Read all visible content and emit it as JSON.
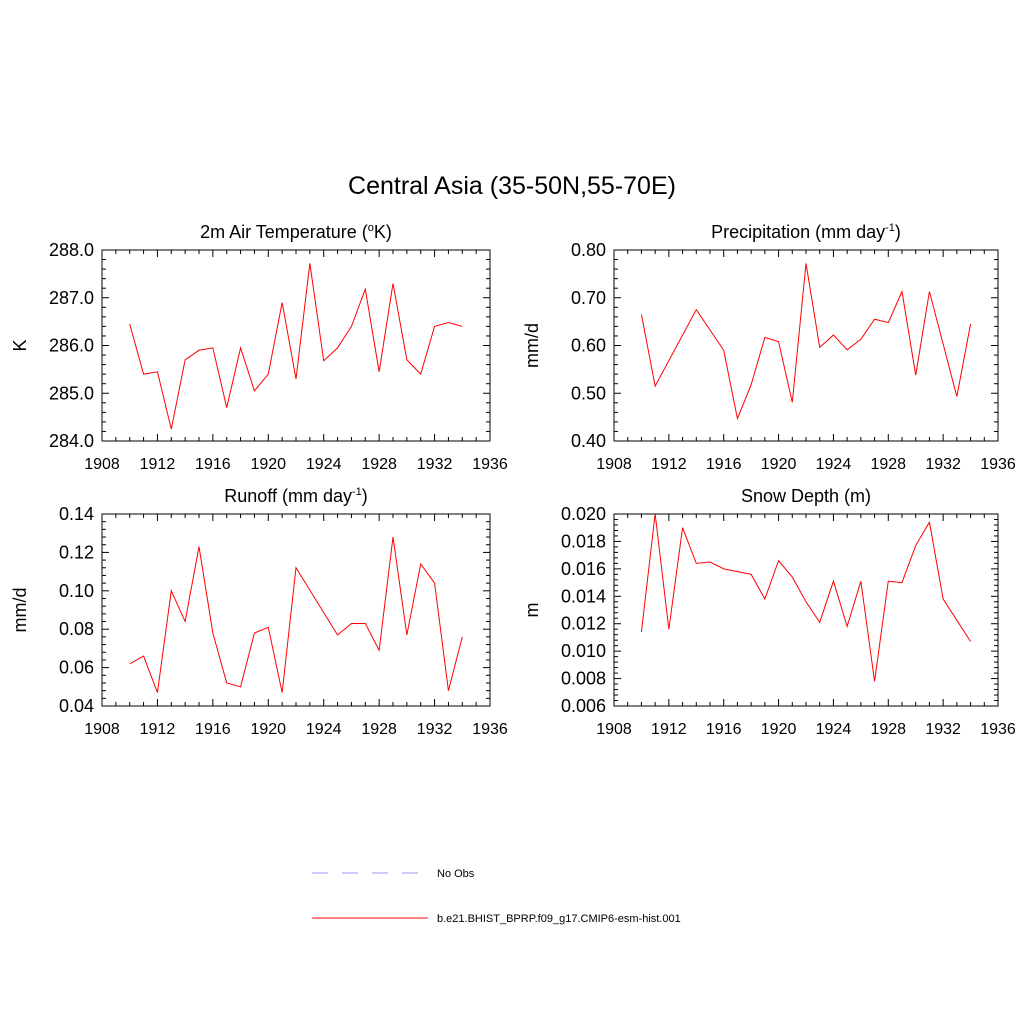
{
  "figure": {
    "title": "Central Asia (35-50N,55-70E)"
  },
  "legend": {
    "placement": "bottom-center",
    "entries": [
      {
        "label": "No Obs",
        "style": "dashed",
        "color": "#9999ff"
      },
      {
        "label": "b.e21.BHIST_BPRP.f09_g17.CMIP6-esm-hist.001",
        "style": "solid",
        "color": "#ff0000"
      }
    ]
  },
  "chart_data": [
    {
      "type": "line",
      "title": "2m Air Temperature (",
      "title_parts": {
        "pre": "2m Air Temperature (",
        "sup": "o",
        "post": "K)"
      },
      "ylabel": "K",
      "xlim": [
        1908,
        1936
      ],
      "ylim": [
        284.0,
        288.0
      ],
      "x_ticks": [
        "1908",
        "1912",
        "1916",
        "1920",
        "1924",
        "1928",
        "1932",
        "1936"
      ],
      "y_ticks": [
        "284.0",
        "285.0",
        "286.0",
        "287.0",
        "288.0"
      ],
      "y_tick_values": [
        284.0,
        285.0,
        286.0,
        287.0,
        288.0
      ],
      "color": "#ff0000",
      "x": [
        1910,
        1911,
        1912,
        1913,
        1914,
        1915,
        1916,
        1917,
        1918,
        1919,
        1920,
        1921,
        1922,
        1923,
        1924,
        1925,
        1926,
        1927,
        1928,
        1929,
        1930,
        1931,
        1932,
        1933,
        1934
      ],
      "values": [
        286.45,
        285.4,
        285.45,
        284.25,
        285.7,
        285.9,
        285.95,
        284.7,
        285.95,
        285.05,
        285.4,
        286.9,
        285.3,
        287.72,
        285.68,
        285.95,
        286.4,
        287.18,
        285.45,
        287.3,
        285.7,
        285.4,
        286.4,
        286.48,
        286.4
      ]
    },
    {
      "type": "line",
      "title": "Precipitation (mm day",
      "title_parts": {
        "pre": "Precipitation (mm day",
        "sup": "-1",
        "post": ")"
      },
      "ylabel": "mm/d",
      "xlim": [
        1908,
        1936
      ],
      "ylim": [
        0.4,
        0.8
      ],
      "x_ticks": [
        "1908",
        "1912",
        "1916",
        "1920",
        "1924",
        "1928",
        "1932",
        "1936"
      ],
      "y_ticks": [
        "0.40",
        "0.50",
        "0.60",
        "0.70",
        "0.80"
      ],
      "y_tick_values": [
        0.4,
        0.5,
        0.6,
        0.7,
        0.8
      ],
      "color": "#ff0000",
      "x": [
        1910,
        1911,
        1914,
        1916,
        1917,
        1918,
        1919,
        1920,
        1921,
        1922,
        1923,
        1924,
        1925,
        1926,
        1927,
        1928,
        1929,
        1930,
        1931,
        1933,
        1934
      ],
      "values": [
        0.665,
        0.515,
        0.675,
        0.59,
        0.447,
        0.518,
        0.617,
        0.608,
        0.481,
        0.772,
        0.596,
        0.622,
        0.591,
        0.613,
        0.655,
        0.648,
        0.713,
        0.538,
        0.713,
        0.493,
        0.645
      ]
    },
    {
      "type": "line",
      "title": "Runoff (mm day",
      "title_parts": {
        "pre": "Runoff (mm day",
        "sup": "-1",
        "post": ")"
      },
      "ylabel": "mm/d",
      "xlim": [
        1908,
        1936
      ],
      "ylim": [
        0.04,
        0.14
      ],
      "x_ticks": [
        "1908",
        "1912",
        "1916",
        "1920",
        "1924",
        "1928",
        "1932",
        "1936"
      ],
      "y_ticks": [
        "0.04",
        "0.06",
        "0.08",
        "0.10",
        "0.12",
        "0.14"
      ],
      "y_tick_values": [
        0.04,
        0.06,
        0.08,
        0.1,
        0.12,
        0.14
      ],
      "color": "#ff0000",
      "x": [
        1910,
        1911,
        1912,
        1913,
        1914,
        1915,
        1916,
        1917,
        1918,
        1919,
        1920,
        1921,
        1922,
        1925,
        1926,
        1927,
        1928,
        1929,
        1930,
        1931,
        1932,
        1933,
        1934
      ],
      "values": [
        0.062,
        0.066,
        0.047,
        0.1,
        0.084,
        0.123,
        0.078,
        0.052,
        0.05,
        0.078,
        0.081,
        0.047,
        0.112,
        0.077,
        0.083,
        0.083,
        0.069,
        0.128,
        0.077,
        0.114,
        0.104,
        0.048,
        0.076
      ]
    },
    {
      "type": "line",
      "title": "Snow Depth (m)",
      "title_parts": {
        "pre": "Snow Depth (m)",
        "sup": "",
        "post": ""
      },
      "ylabel": "m",
      "xlim": [
        1908,
        1936
      ],
      "ylim": [
        0.006,
        0.02
      ],
      "x_ticks": [
        "1908",
        "1912",
        "1916",
        "1920",
        "1924",
        "1928",
        "1932",
        "1936"
      ],
      "y_ticks": [
        "0.006",
        "0.008",
        "0.010",
        "0.012",
        "0.014",
        "0.016",
        "0.018",
        "0.020"
      ],
      "y_tick_values": [
        0.006,
        0.008,
        0.01,
        0.012,
        0.014,
        0.016,
        0.018,
        0.02
      ],
      "color": "#ff0000",
      "x": [
        1910,
        1911,
        1912,
        1913,
        1914,
        1915,
        1916,
        1918,
        1919,
        1920,
        1921,
        1922,
        1923,
        1924,
        1925,
        1926,
        1927,
        1928,
        1929,
        1930,
        1931,
        1932,
        1934
      ],
      "values": [
        0.0114,
        0.02,
        0.0116,
        0.019,
        0.0164,
        0.0165,
        0.016,
        0.0156,
        0.0138,
        0.0166,
        0.0154,
        0.0136,
        0.0121,
        0.0151,
        0.0118,
        0.0151,
        0.0078,
        0.0151,
        0.015,
        0.0177,
        0.0194,
        0.0138,
        0.0107
      ]
    }
  ]
}
